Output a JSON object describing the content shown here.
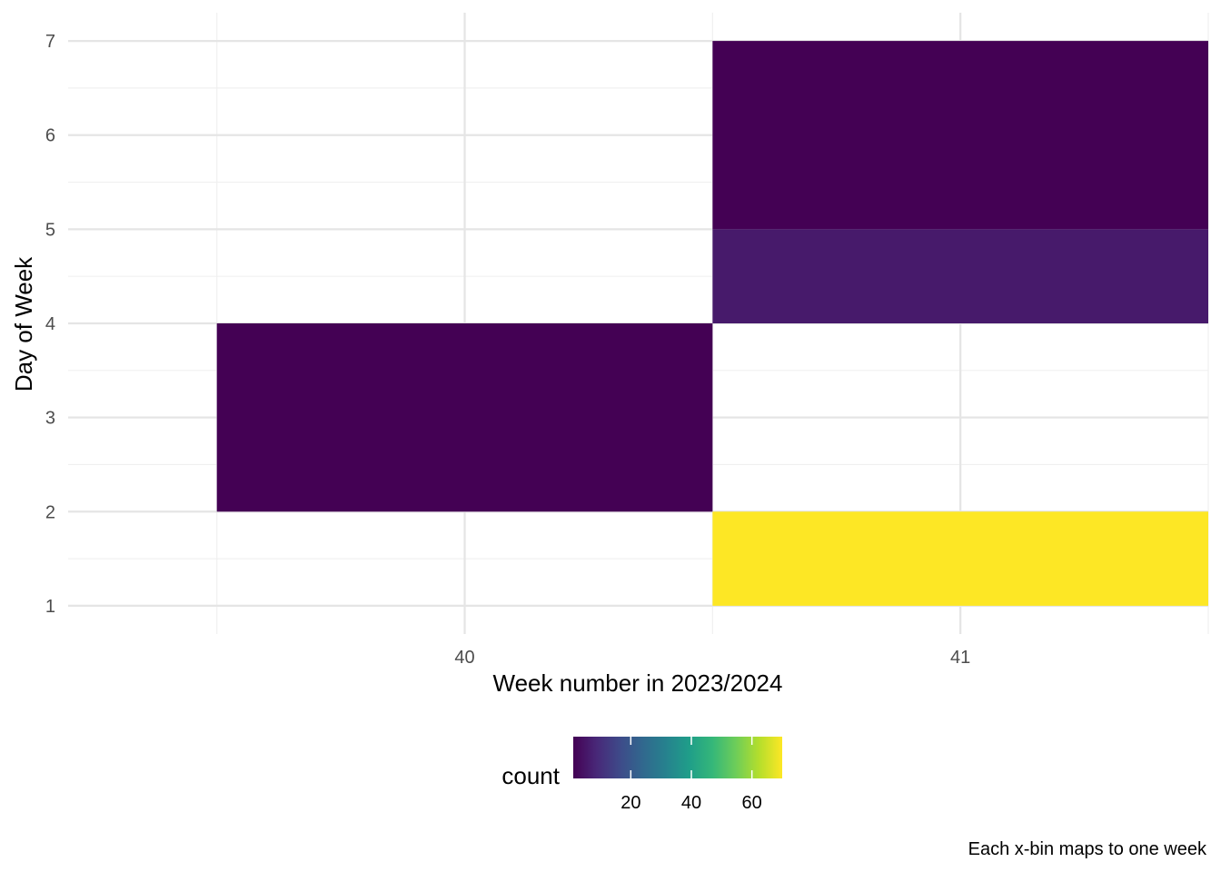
{
  "chart_data": {
    "type": "heatmap",
    "xlabel": "Week number in 2023/2024",
    "ylabel": "Day of Week",
    "x_ticks": [
      40,
      41
    ],
    "y_ticks": [
      1,
      2,
      3,
      4,
      5,
      6,
      7
    ],
    "xlim": [
      39.2,
      41.5
    ],
    "ylim": [
      0.7,
      7.3
    ],
    "cells": [
      {
        "x0": 39.5,
        "x1": 40.5,
        "y0": 2,
        "y1": 4,
        "count": 1
      },
      {
        "x0": 40.5,
        "x1": 41.5,
        "y0": 5,
        "y1": 7,
        "count": 1
      },
      {
        "x0": 40.5,
        "x1": 41.5,
        "y0": 4,
        "y1": 5,
        "count": 6
      },
      {
        "x0": 40.5,
        "x1": 41.5,
        "y0": 1,
        "y1": 2,
        "count": 70
      }
    ],
    "legend": {
      "title": "count",
      "position": "bottom",
      "range": [
        1,
        70
      ],
      "ticks": [
        20,
        40,
        60
      ],
      "palette": [
        "#440154",
        "#482878",
        "#3E4A89",
        "#31688E",
        "#26828E",
        "#1F9E89",
        "#35B779",
        "#6DCD59",
        "#B4DE2C",
        "#FDE725"
      ]
    },
    "grid": true,
    "caption": "Each x-bin maps to one week"
  }
}
